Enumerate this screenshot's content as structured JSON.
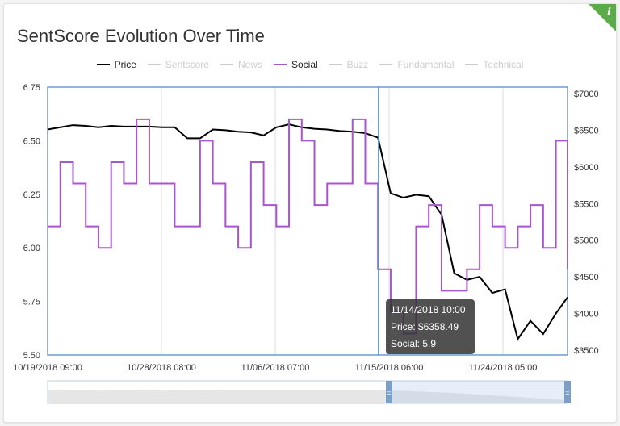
{
  "title": "SentScore Evolution Over Time",
  "info_icon": "info-icon",
  "legend": [
    {
      "name": "Price",
      "color": "#000000",
      "active": true
    },
    {
      "name": "Sentscore",
      "color": "#cccccc",
      "active": false
    },
    {
      "name": "News",
      "color": "#cccccc",
      "active": false
    },
    {
      "name": "Social",
      "color": "#a855d0",
      "active": true
    },
    {
      "name": "Buzz",
      "color": "#cccccc",
      "active": false
    },
    {
      "name": "Fundamental",
      "color": "#cccccc",
      "active": false
    },
    {
      "name": "Technical",
      "color": "#cccccc",
      "active": false
    }
  ],
  "tooltip": {
    "time": "11/14/2018 10:00",
    "price": "Price: $6358.49",
    "social": "Social: 5.9"
  },
  "chart_data": {
    "type": "line",
    "grid": true,
    "legend_position": "top",
    "x_ticks": [
      "10/19/2018 09:00",
      "10/28/2018 08:00",
      "11/06/2018 07:00",
      "11/15/2018 06:00",
      "11/24/2018 05:00"
    ],
    "y_left": {
      "ticks": [
        "5.50",
        "5.75",
        "6.00",
        "6.25",
        "6.50",
        "6.75"
      ],
      "range": [
        5.5,
        6.75
      ]
    },
    "y_right": {
      "ticks": [
        "$3500",
        "$4000",
        "$4500",
        "$5000",
        "$5500",
        "$6000",
        "$6500",
        "$7000"
      ],
      "range": [
        3500,
        7000
      ]
    },
    "x": [
      "10/19/2018 09:00",
      "10/20/2018 09:00",
      "10/21/2018 09:00",
      "10/22/2018 09:00",
      "10/23/2018 09:00",
      "10/24/2018 09:00",
      "10/25/2018 09:00",
      "10/26/2018 09:00",
      "10/27/2018 09:00",
      "10/28/2018 09:00",
      "10/29/2018 09:00",
      "10/30/2018 09:00",
      "10/31/2018 09:00",
      "11/01/2018 09:00",
      "11/02/2018 09:00",
      "11/03/2018 09:00",
      "11/04/2018 09:00",
      "11/05/2018 09:00",
      "11/06/2018 09:00",
      "11/07/2018 09:00",
      "11/08/2018 09:00",
      "11/09/2018 09:00",
      "11/10/2018 09:00",
      "11/11/2018 09:00",
      "11/12/2018 09:00",
      "11/13/2018 09:00",
      "11/14/2018 09:00",
      "11/15/2018 09:00",
      "11/16/2018 09:00",
      "11/17/2018 09:00",
      "11/18/2018 09:00",
      "11/19/2018 09:00",
      "11/20/2018 09:00",
      "11/21/2018 09:00",
      "11/22/2018 09:00",
      "11/23/2018 09:00",
      "11/24/2018 09:00",
      "11/25/2018 09:00",
      "11/26/2018 09:00",
      "11/27/2018 09:00",
      "11/28/2018 09:00",
      "11/29/2018 07:00"
    ],
    "series": [
      {
        "name": "Price",
        "axis": "right",
        "color": "#000000",
        "step": false,
        "values": [
          6510,
          6540,
          6570,
          6560,
          6540,
          6560,
          6550,
          6550,
          6550,
          6540,
          6540,
          6390,
          6390,
          6510,
          6500,
          6480,
          6470,
          6430,
          6540,
          6580,
          6540,
          6520,
          6510,
          6490,
          6480,
          6460,
          6400,
          5640,
          5580,
          5620,
          5600,
          5350,
          4550,
          4460,
          4500,
          4280,
          4330,
          3650,
          3900,
          3720,
          4000,
          4220
        ]
      },
      {
        "name": "Social",
        "axis": "left",
        "color": "#a855d0",
        "step": true,
        "values": [
          6.1,
          6.4,
          6.3,
          6.1,
          6.0,
          6.4,
          6.3,
          6.6,
          6.3,
          6.3,
          6.1,
          6.1,
          6.5,
          6.3,
          6.1,
          6.0,
          6.4,
          6.2,
          6.1,
          6.6,
          6.5,
          6.2,
          6.3,
          6.3,
          6.6,
          6.3,
          5.9,
          5.7,
          5.6,
          6.1,
          6.2,
          5.8,
          5.8,
          5.9,
          6.2,
          6.1,
          6.0,
          6.1,
          6.2,
          6.0,
          6.5,
          5.9
        ]
      }
    ],
    "hover_x": "11/14/2018 10:00",
    "navigator_selection": [
      "11/15/2018 06:00",
      "11/29/2018 07:00"
    ]
  }
}
